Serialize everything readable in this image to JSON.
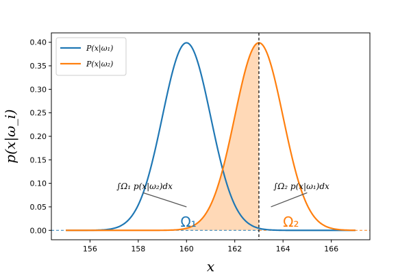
{
  "chart_data": {
    "type": "line",
    "xlabel": "x",
    "ylabel": "p(x|ω_i)",
    "xlim": [
      154.4,
      167.6
    ],
    "ylim": [
      -0.02,
      0.42
    ],
    "xticks": [
      156,
      158,
      160,
      162,
      164,
      166
    ],
    "yticks": [
      0.0,
      0.05,
      0.1,
      0.15,
      0.2,
      0.25,
      0.3,
      0.35,
      0.4
    ],
    "ytick_labels": [
      "0.00",
      "0.05",
      "0.10",
      "0.15",
      "0.20",
      "0.25",
      "0.30",
      "0.35",
      "0.40"
    ],
    "x_range": [
      155,
      167
    ],
    "series": [
      {
        "name": "P(x|ω₁)",
        "distribution": "normal",
        "mean": 160,
        "std": 1,
        "color": "#1f77b4"
      },
      {
        "name": "P(x|ω₂)",
        "distribution": "normal",
        "mean": 163,
        "std": 1,
        "color": "#ff7f0e"
      }
    ],
    "threshold_x": 163,
    "shaded_regions": [
      {
        "series": "P(x|ω₂)",
        "from": 155,
        "to": 163,
        "color": "#ffc999"
      },
      {
        "series": "P(x|ω₁)",
        "from": 163,
        "to": 167,
        "color": "#9ac3e2"
      }
    ],
    "annotations": [
      {
        "text": "∫Ω₁ p(x|ω₂)dx",
        "text_x": 157.1,
        "text_y": 0.088,
        "arrow_from": [
          158.2,
          0.08
        ],
        "arrow_to": [
          160,
          0.05
        ]
      },
      {
        "text": "∫Ω₂ p(x|ω₁)dx",
        "text_x": 163.6,
        "text_y": 0.088,
        "arrow_from": [
          165,
          0.08
        ],
        "arrow_to": [
          163.5,
          0.05
        ]
      }
    ],
    "region_labels": [
      {
        "text": "Ω₁",
        "x": 159.75,
        "y": 0.008,
        "color": "#1f77b4"
      },
      {
        "text": "Ω₂",
        "x": 164.0,
        "y": 0.008,
        "color": "#ff7f0e"
      }
    ],
    "legend": {
      "placement": "top-left"
    },
    "grid": false
  }
}
